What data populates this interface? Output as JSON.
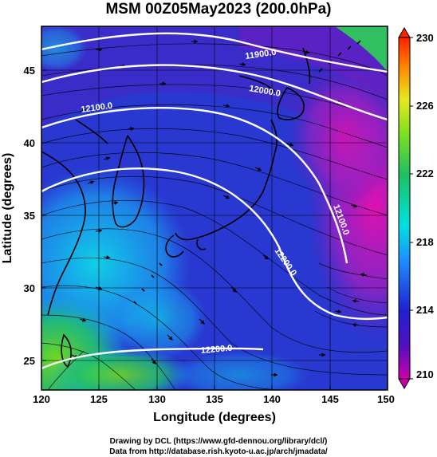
{
  "title": "MSM 00Z05May2023 (200.0hPa)",
  "x_axis": {
    "label": "Longitude (degrees)",
    "ticks": [
      "120",
      "125",
      "130",
      "135",
      "140",
      "145",
      "150"
    ],
    "range": [
      120,
      150
    ]
  },
  "y_axis": {
    "label": "Latitude  (degrees)",
    "ticks": [
      "25",
      "30",
      "35",
      "40",
      "45"
    ],
    "range": [
      22.5,
      47.5
    ]
  },
  "colorbar": {
    "ticks": [
      "210",
      "214",
      "218",
      "222",
      "226",
      "230"
    ],
    "range": [
      210,
      230
    ],
    "colors": [
      "#cc00aa",
      "#2020d0",
      "#1e90ff",
      "#00e0e0",
      "#20c060",
      "#80e020",
      "#e8e820",
      "#ff8000",
      "#ff2000"
    ]
  },
  "contours": [
    {
      "label": "11900.0"
    },
    {
      "label": "12000.0"
    },
    {
      "label": "12100.0"
    },
    {
      "label": "12100.0"
    },
    {
      "label": "12200.0"
    },
    {
      "label": "12200.0"
    }
  ],
  "credits": {
    "line1": "Drawing by DCL (https://www.gfd-dennou.org/library/dcl/)",
    "line2": "Data from http://database.rish.kyoto-u.ac.jp/arch/jmadata/"
  },
  "colors": {
    "frame": "#000000",
    "contour": "#ffffff",
    "coastline": "#000000"
  }
}
